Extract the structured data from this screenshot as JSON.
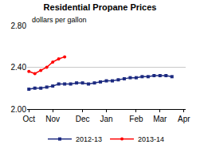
{
  "chart_data": {
    "type": "line",
    "title": "Residential Propane Prices",
    "subtitle": "dollars per gallon",
    "categories": [
      "Oct",
      null,
      null,
      null,
      "Nov",
      null,
      null,
      null,
      null,
      "Dec",
      null,
      null,
      null,
      "Jan",
      null,
      null,
      null,
      null,
      "Feb",
      null,
      null,
      null,
      "Mar",
      null,
      null,
      null,
      "Apr"
    ],
    "series": [
      {
        "name": "2012-13",
        "color": "#1c2a80",
        "marker": "square",
        "line_style": "solid",
        "values": [
          2.19,
          2.2,
          2.2,
          2.21,
          2.22,
          2.24,
          2.24,
          2.24,
          2.25,
          2.25,
          2.24,
          2.25,
          2.26,
          2.27,
          2.27,
          2.28,
          2.29,
          2.3,
          2.3,
          2.31,
          2.31,
          2.32,
          2.32,
          2.32,
          2.31,
          null,
          null
        ]
      },
      {
        "name": "2013-14",
        "color": "#ff0000",
        "marker": "circle",
        "line_style": "solid",
        "values": [
          2.36,
          2.34,
          2.37,
          2.4,
          2.45,
          2.48,
          2.5,
          null,
          null,
          null,
          null,
          null,
          null,
          null,
          null,
          null,
          null,
          null,
          null,
          null,
          null,
          null,
          null,
          null,
          null,
          null,
          null
        ]
      }
    ],
    "ylim": [
      2.0,
      2.8
    ],
    "yticks": [
      {
        "value": 2.0,
        "label": "2.00"
      },
      {
        "value": 2.4,
        "label": "2.40"
      },
      {
        "value": 2.8,
        "label": "2.80"
      }
    ],
    "grid": true,
    "legend": "bottom"
  }
}
